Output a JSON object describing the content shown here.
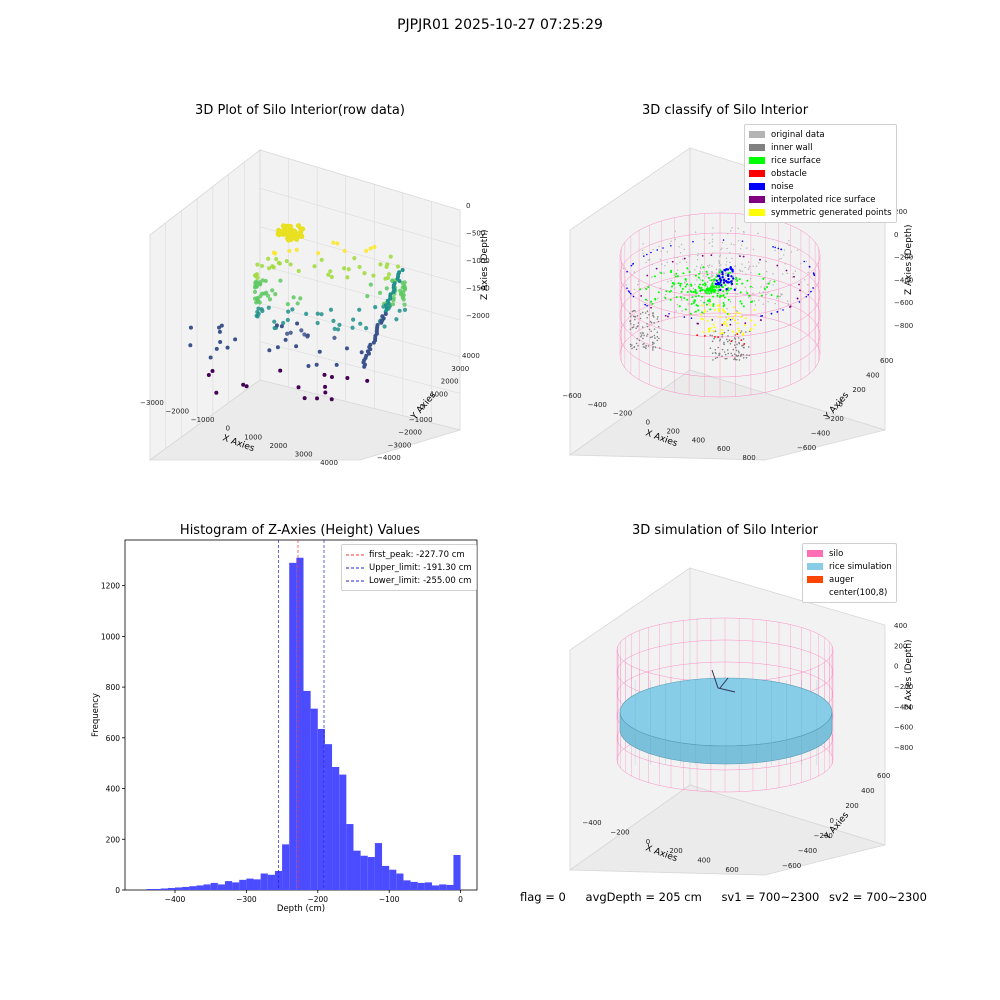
{
  "suptitle": "PJPJR01 2025-10-27 07:25:29",
  "colors": {
    "hist_bar": "#4b4bff",
    "first_peak": "#ff3030",
    "limit": "#2020cc",
    "silo": "#ff6eb4",
    "rice": "#87cde8",
    "auger": "#ff4500",
    "classes": [
      "#b4b4b4",
      "#808080",
      "#00ff00",
      "#ff0000",
      "#0000ff",
      "#800080",
      "#ffff00"
    ]
  },
  "chart_data": [
    {
      "type": "scatter",
      "panel": "3d-raw",
      "title": "3D Plot of Silo Interior(row data)",
      "xlabel": "X Axies",
      "ylabel": "Y Axies",
      "zlabel": "Z Axies (Depth)",
      "x_ticks": [
        "−3000",
        "−2000",
        "−1000",
        "0",
        "1000",
        "2000",
        "3000",
        "4000"
      ],
      "y_ticks": [
        "−4000",
        "−3000",
        "−2000",
        "−1000",
        "0",
        "1000",
        "2000",
        "3000",
        "4000"
      ],
      "z_ticks": [
        "0",
        "−500",
        "−1000",
        "−1500",
        "−2000"
      ],
      "colormap": "viridis"
    },
    {
      "type": "scatter",
      "panel": "3d-classify",
      "title": "3D classify of Silo Interior",
      "xlabel": "X Axies",
      "ylabel": "Y Axies",
      "zlabel": "Z Axies (Depth)",
      "x_ticks": [
        "−600",
        "−400",
        "−200",
        "0",
        "200",
        "400",
        "600",
        "800"
      ],
      "y_ticks": [
        "−600",
        "−400",
        "−200",
        "0",
        "200",
        "400",
        "600"
      ],
      "z_ticks": [
        "200",
        "0",
        "−200",
        "−400",
        "−600",
        "−800"
      ],
      "legend": [
        "original data",
        "inner wall",
        "rice surface",
        "obstacle",
        "noise",
        "interpolated rice surface",
        "symmetric generated points"
      ]
    },
    {
      "type": "bar",
      "panel": "histogram",
      "title": "Histogram of Z-Axies (Height) Values",
      "xlabel": "Depth (cm)",
      "ylabel": "Frequency",
      "xlim": [
        -470,
        23
      ],
      "ylim": [
        0,
        1380
      ],
      "x_ticks": [
        -400,
        -300,
        -200,
        -100,
        0
      ],
      "y_ticks": [
        0,
        200,
        400,
        600,
        800,
        1000,
        1200
      ],
      "bin_width": 10,
      "bins": [
        [
          -440,
          4
        ],
        [
          -430,
          4
        ],
        [
          -420,
          6
        ],
        [
          -410,
          8
        ],
        [
          -400,
          10
        ],
        [
          -390,
          12
        ],
        [
          -380,
          15
        ],
        [
          -370,
          18
        ],
        [
          -360,
          22
        ],
        [
          -350,
          28
        ],
        [
          -340,
          22
        ],
        [
          -330,
          35
        ],
        [
          -320,
          30
        ],
        [
          -310,
          40
        ],
        [
          -300,
          45
        ],
        [
          -290,
          42
        ],
        [
          -280,
          65
        ],
        [
          -270,
          60
        ],
        [
          -260,
          75
        ],
        [
          -250,
          180
        ],
        [
          -240,
          1290
        ],
        [
          -230,
          1310
        ],
        [
          -220,
          785
        ],
        [
          -210,
          715
        ],
        [
          -200,
          635
        ],
        [
          -190,
          575
        ],
        [
          -180,
          485
        ],
        [
          -170,
          455
        ],
        [
          -160,
          260
        ],
        [
          -150,
          155
        ],
        [
          -140,
          135
        ],
        [
          -130,
          130
        ],
        [
          -120,
          185
        ],
        [
          -110,
          95
        ],
        [
          -100,
          80
        ],
        [
          -90,
          65
        ],
        [
          -80,
          38
        ],
        [
          -70,
          32
        ],
        [
          -60,
          28
        ],
        [
          -50,
          30
        ],
        [
          -40,
          18
        ],
        [
          -30,
          22
        ],
        [
          -20,
          20
        ],
        [
          -10,
          138
        ]
      ],
      "vlines": [
        {
          "label": "first_peak: -227.70 cm",
          "x": -227.7,
          "color": "#ff3030"
        },
        {
          "label": "Upper_limit: -191.30 cm",
          "x": -191.3,
          "color": "#2020cc"
        },
        {
          "label": "Lower_limit: -255.00 cm",
          "x": -255.0,
          "color": "#2020cc"
        }
      ],
      "legend_position": "upper right"
    },
    {
      "type": "surface",
      "panel": "3d-simulation",
      "title": "3D simulation of Silo Interior",
      "xlabel": "X Axies",
      "ylabel": "Y Axies",
      "zlabel": "Z Axies (Depth)",
      "x_ticks": [
        "−400",
        "−200",
        "0",
        "200",
        "400",
        "600"
      ],
      "y_ticks": [
        "−600",
        "−400",
        "−200",
        "0",
        "200",
        "400",
        "600"
      ],
      "z_ticks": [
        "400",
        "200",
        "0",
        "−200",
        "−400",
        "−600",
        "−800"
      ],
      "legend": [
        "silo",
        "rice simulation",
        "auger",
        "center(100,8)"
      ]
    }
  ],
  "footer": {
    "flag": "flag = 0",
    "avg_depth": "avgDepth = 205 cm",
    "sv1": "sv1 = 700~2300",
    "sv2": "sv2 = 700~2300"
  }
}
